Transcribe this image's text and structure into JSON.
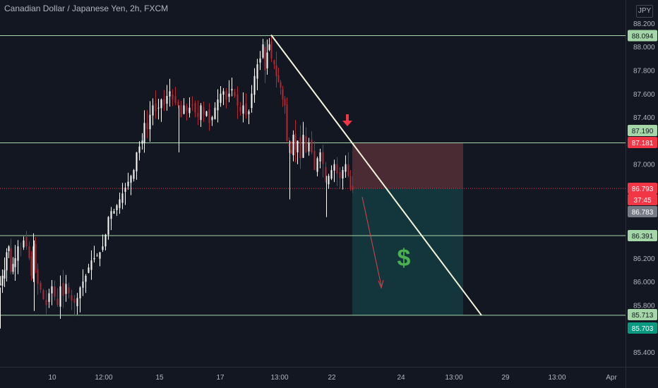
{
  "header": {
    "title": "Canadian Dollar / Japanese Yen, 2h, FXCM",
    "currency": "JPY"
  },
  "colors": {
    "background": "#131722",
    "up_candle": "#ffffff",
    "down_candle": "#b22833",
    "level_line": "#a5d6a7",
    "trend_line": "#f5f5dc",
    "stop_zone": "#4a2b33",
    "target_zone": "#12363b",
    "arrow_red": "#f23645",
    "dollar_green": "#4caf50"
  },
  "chart_data": {
    "type": "candlestick",
    "symbol": "Canadian Dollar / Japanese Yen, 2h, FXCM",
    "y_axis": {
      "unit": "JPY",
      "range": [
        85.3,
        88.25
      ],
      "ticks": [
        "88.200",
        "88.000",
        "87.800",
        "87.600",
        "87.400",
        "87.000",
        "86.200",
        "86.000",
        "85.800",
        "85.400"
      ]
    },
    "x_axis": {
      "ticks": [
        "10",
        "12:00",
        "15",
        "17",
        "13:00",
        "22",
        "24",
        "13:00",
        "29",
        "13:00",
        "Apr"
      ]
    },
    "horizontal_levels": [
      88.094,
      87.181,
      86.391,
      85.713
    ],
    "price_labels": [
      {
        "text": "88.094",
        "value": 88.094,
        "style": "level"
      },
      {
        "text": "87.190",
        "value": 87.19,
        "style": "level"
      },
      {
        "text": "87.181",
        "value": 87.181,
        "style": "stop"
      },
      {
        "text": "86.793",
        "value": 86.793,
        "style": "current"
      },
      {
        "text": "37:45",
        "value": 86.735,
        "style": "timer"
      },
      {
        "text": "86.783",
        "value": 86.783,
        "style": "grey"
      },
      {
        "text": "86.391",
        "value": 86.391,
        "style": "level"
      },
      {
        "text": "85.713",
        "value": 85.713,
        "style": "level"
      },
      {
        "text": "85.703",
        "value": 85.703,
        "style": "target"
      }
    ],
    "current_price": 86.793,
    "position": {
      "type": "short",
      "entry": 86.793,
      "stop_loss": 87.181,
      "take_profit": 85.713,
      "label": "$"
    },
    "trend_line": {
      "start_price": 88.1,
      "end_price": 85.713
    },
    "close_path": [
      [
        0,
        85.98
      ],
      [
        3,
        86.05
      ],
      [
        6,
        86.1
      ],
      [
        9,
        86.25
      ],
      [
        12,
        86.3
      ],
      [
        15,
        86.08
      ],
      [
        18,
        86.15
      ],
      [
        21,
        86.2
      ],
      [
        25,
        86.3
      ],
      [
        29,
        86.28
      ],
      [
        33,
        86.35
      ],
      [
        37,
        86.3
      ],
      [
        41,
        86.2
      ],
      [
        44,
        86.05
      ],
      [
        47,
        86.3
      ],
      [
        50,
        86.1
      ],
      [
        53,
        85.98
      ],
      [
        57,
        85.93
      ],
      [
        61,
        85.85
      ],
      [
        65,
        85.8
      ],
      [
        69,
        85.9
      ],
      [
        73,
        85.96
      ],
      [
        77,
        85.87
      ],
      [
        81,
        85.8
      ],
      [
        85,
        85.96
      ],
      [
        89,
        85.88
      ],
      [
        93,
        85.98
      ],
      [
        97,
        85.9
      ],
      [
        101,
        85.84
      ],
      [
        105,
        85.82
      ],
      [
        109,
        85.86
      ],
      [
        113,
        85.95
      ],
      [
        117,
        86.0
      ],
      [
        121,
        86.05
      ],
      [
        125,
        86.12
      ],
      [
        129,
        86.18
      ],
      [
        133,
        86.2
      ],
      [
        137,
        86.22
      ],
      [
        141,
        86.25
      ],
      [
        145,
        86.3
      ],
      [
        149,
        86.4
      ],
      [
        153,
        86.55
      ],
      [
        157,
        86.6
      ],
      [
        161,
        86.6
      ],
      [
        165,
        86.65
      ],
      [
        169,
        86.7
      ],
      [
        173,
        86.75
      ],
      [
        177,
        86.8
      ],
      [
        181,
        86.85
      ],
      [
        185,
        86.9
      ],
      [
        189,
        86.95
      ],
      [
        193,
        87.1
      ],
      [
        197,
        87.15
      ],
      [
        201,
        87.2
      ],
      [
        204,
        87.35
      ],
      [
        208,
        87.3
      ],
      [
        212,
        87.42
      ],
      [
        216,
        87.5
      ],
      [
        220,
        87.45
      ],
      [
        224,
        87.48
      ],
      [
        228,
        87.55
      ],
      [
        232,
        87.5
      ],
      [
        236,
        87.58
      ],
      [
        240,
        87.62
      ],
      [
        244,
        87.55
      ],
      [
        248,
        87.52
      ],
      [
        252,
        87.5
      ],
      [
        256,
        87.4
      ],
      [
        260,
        87.5
      ],
      [
        264,
        87.45
      ],
      [
        268,
        87.48
      ],
      [
        272,
        87.5
      ],
      [
        276,
        87.44
      ],
      [
        280,
        87.4
      ],
      [
        284,
        87.5
      ],
      [
        288,
        87.42
      ],
      [
        292,
        87.45
      ],
      [
        296,
        87.35
      ],
      [
        300,
        87.4
      ],
      [
        304,
        87.48
      ],
      [
        308,
        87.55
      ],
      [
        312,
        87.6
      ],
      [
        316,
        87.62
      ],
      [
        320,
        87.55
      ],
      [
        324,
        87.6
      ],
      [
        328,
        87.64
      ],
      [
        332,
        87.58
      ],
      [
        336,
        87.5
      ],
      [
        340,
        87.45
      ],
      [
        344,
        87.5
      ],
      [
        348,
        87.42
      ],
      [
        352,
        87.45
      ],
      [
        356,
        87.6
      ],
      [
        360,
        87.75
      ],
      [
        364,
        87.85
      ],
      [
        368,
        87.9
      ],
      [
        372,
        88.02
      ],
      [
        375,
        87.8
      ],
      [
        378,
        87.95
      ],
      [
        381,
        88.02
      ],
      [
        384,
        87.9
      ],
      [
        388,
        87.85
      ],
      [
        391,
        87.75
      ],
      [
        394,
        87.7
      ],
      [
        397,
        87.65
      ],
      [
        400,
        87.55
      ],
      [
        403,
        87.5
      ],
      [
        406,
        87.2
      ],
      [
        409,
        87.15
      ],
      [
        412,
        87.1
      ],
      [
        415,
        87.25
      ],
      [
        418,
        87.12
      ],
      [
        421,
        87.2
      ],
      [
        425,
        87.05
      ],
      [
        429,
        87.25
      ],
      [
        433,
        87.1
      ],
      [
        437,
        87.18
      ],
      [
        441,
        87.1
      ],
      [
        445,
        86.95
      ],
      [
        449,
        87.05
      ],
      [
        453,
        87.1
      ],
      [
        457,
        87.0
      ],
      [
        461,
        86.85
      ],
      [
        465,
        86.9
      ],
      [
        469,
        86.95
      ],
      [
        473,
        87.0
      ],
      [
        477,
        86.92
      ],
      [
        481,
        86.88
      ],
      [
        485,
        86.95
      ],
      [
        489,
        87.0
      ],
      [
        493,
        86.9
      ],
      [
        496,
        86.8
      ],
      [
        499,
        86.78
      ]
    ]
  }
}
